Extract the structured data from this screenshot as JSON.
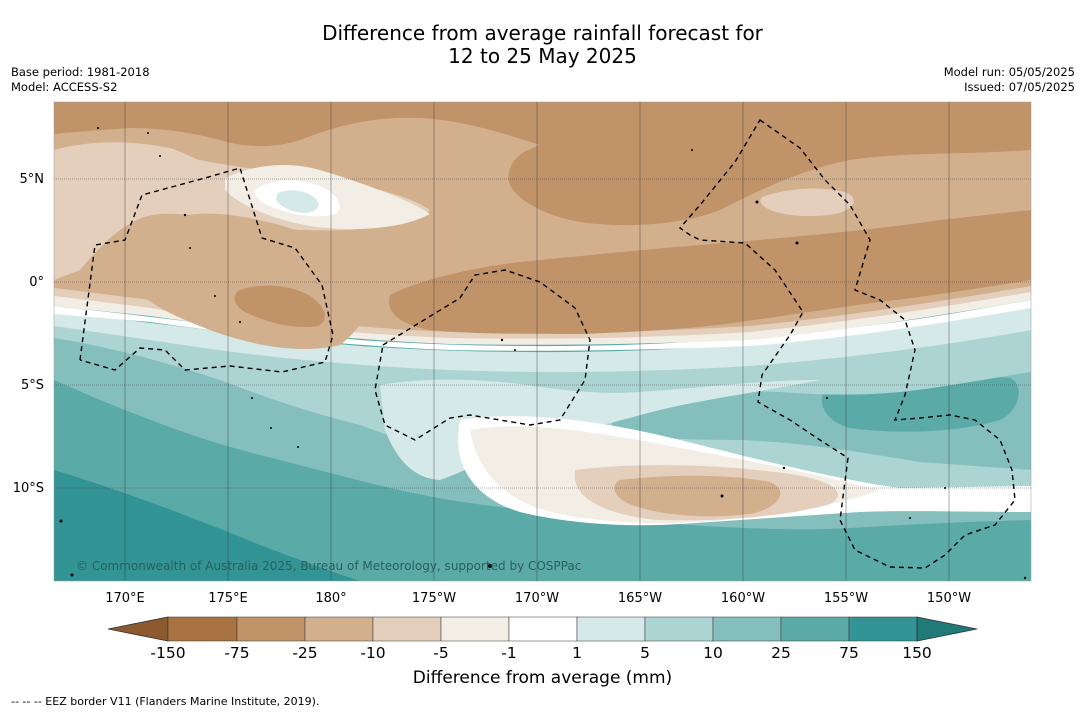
{
  "title": {
    "line1": "Difference from average rainfall forecast for",
    "line2": "12 to 25 May 2025"
  },
  "meta": {
    "base_period": "Base period: 1981-2018",
    "model": "Model: ACCESS-S2",
    "model_run": "Model run: 05/05/2025",
    "issued": "Issued: 07/05/2025"
  },
  "map": {
    "lat_labels": [
      "5°N",
      "0°",
      "5°S",
      "10°S"
    ],
    "lon_labels": [
      "170°E",
      "175°E",
      "180°",
      "175°W",
      "170°W",
      "165°W",
      "160°W",
      "155°W",
      "150°W"
    ],
    "copyright": "© Commonwealth of Australia 2025, Bureau of Meteorology, supported by COSPPac",
    "colors": {
      "dry_150": "#a87341",
      "dry_75": "#c09369",
      "dry_25": "#d2b08e",
      "dry_10": "#e4cfbd",
      "dry_5": "#f2ede5",
      "neutral": "#ffffff",
      "wet_5": "#d5e9e8",
      "wet_10": "#abd4d2",
      "wet_25": "#84bfbe",
      "wet_75": "#5aaaa8",
      "wet_150": "#329494",
      "wet_max": "#1f7a78"
    }
  },
  "colorbar": {
    "ticks": [
      "-150",
      "-75",
      "-25",
      "-10",
      "-5",
      "-1",
      "1",
      "5",
      "10",
      "25",
      "75",
      "150"
    ],
    "label": "Difference from average (mm)"
  },
  "legend_note": "--  --  -- EEZ border V11 (Flanders Marine Institute, 2019)."
}
